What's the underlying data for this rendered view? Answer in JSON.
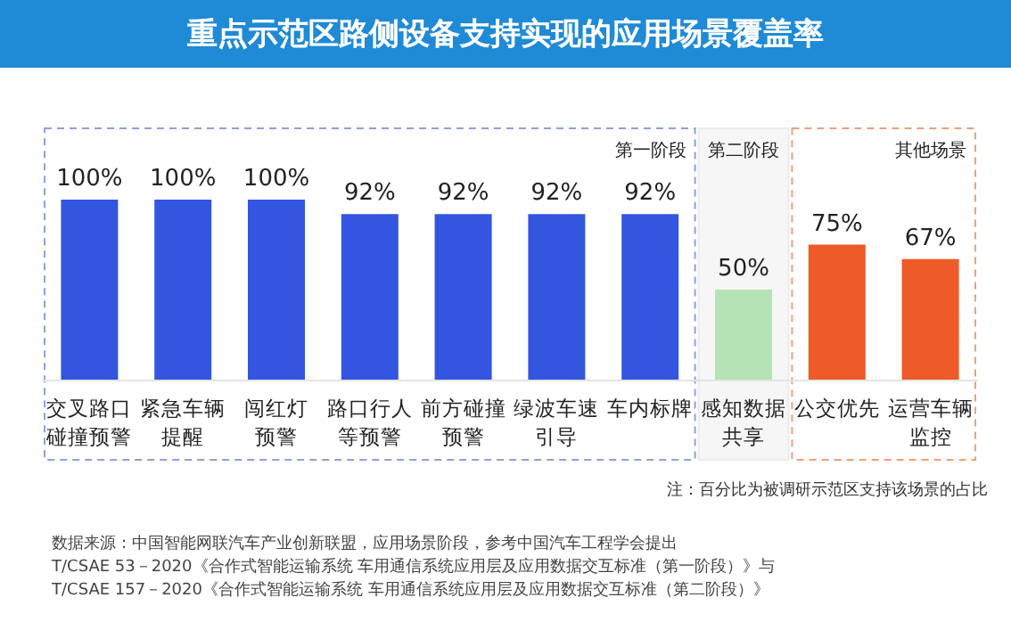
{
  "chart_data": {
    "type": "bar",
    "title": "重点示范区路侧设备支持实现的应用场景覆盖率",
    "categories": [
      "交叉路口碰撞预警",
      "紧急车辆提醒",
      "闯红灯预警",
      "路口行人等预警",
      "前方碰撞预警",
      "绿波车速引导",
      "车内标牌",
      "感知数据共享",
      "公交优先",
      "运营车辆监控"
    ],
    "values": [
      100,
      100,
      100,
      92,
      92,
      92,
      92,
      50,
      75,
      67
    ],
    "colors": [
      "#3355e0",
      "#3355e0",
      "#3355e0",
      "#3355e0",
      "#3355e0",
      "#3355e0",
      "#3355e0",
      "#b5e3b5",
      "#ee5a28",
      "#ee5a28"
    ],
    "value_labels": [
      "100%",
      "100%",
      "100%",
      "92%",
      "92%",
      "92%",
      "92%",
      "50%",
      "75%",
      "67%"
    ],
    "annotations": [
      "第一阶段",
      "第二阶段",
      "其他场景",
      "注：百分比为被调研示范区支持该场景的占比",
      "数据来源：中国智能网联汽车产业创新联盟，应用场景阶段，参考中国汽车工程学会提出\nT/CSAE 53－2020《合作式智能运输系统 车用通信系统应用层及应用数据交互标准（第一阶段）》与\nT/CSAE 157－2020《合作式智能运输系统 车用通信系统应用层及应用数据交互标准（第二阶段）》"
    ],
    "tick_labels": "x"
  }
}
